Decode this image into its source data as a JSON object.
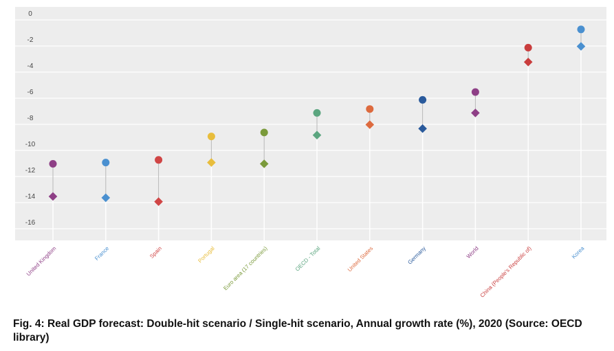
{
  "chart_data": {
    "type": "scatter",
    "subtype": "dumbbell",
    "categories": [
      "United Kingdom",
      "France",
      "Spain",
      "Portugal",
      "Euro area (17 countries)",
      "OECD - Total",
      "United States",
      "Germany",
      "World",
      "China (People's Republic of)",
      "Korea"
    ],
    "series": [
      {
        "name": "Double-hit scenario",
        "marker": "diamond",
        "values": [
          -14.0,
          -14.1,
          -14.4,
          -11.4,
          -11.5,
          -9.3,
          -8.5,
          -8.8,
          -7.6,
          -3.7,
          -2.5
        ]
      },
      {
        "name": "Single-hit scenario",
        "marker": "circle",
        "values": [
          -11.5,
          -11.4,
          -11.2,
          -9.4,
          -9.1,
          -7.6,
          -7.3,
          -6.6,
          -6.0,
          -2.6,
          -1.2
        ]
      }
    ],
    "colors": [
      "#8e3f86",
      "#4a90d0",
      "#d04545",
      "#e8bd3c",
      "#7a9a3a",
      "#5ba57f",
      "#dd6a3e",
      "#2a5a9c",
      "#8e3f86",
      "#c93d3d",
      "#4a90d0"
    ],
    "yticks": [
      "0",
      "-2",
      "-4",
      "-6",
      "-8",
      "-10",
      "-12",
      "-14",
      "-16"
    ],
    "ylim": [
      -17.0,
      0.6
    ],
    "xlabel": "",
    "ylabel": "",
    "grid": true,
    "caption": "Fig.  4: Real GDP forecast: Double-hit scenario / Single-hit scenario, Annual growth rate (%), 2020 (Source: OECD library)"
  }
}
